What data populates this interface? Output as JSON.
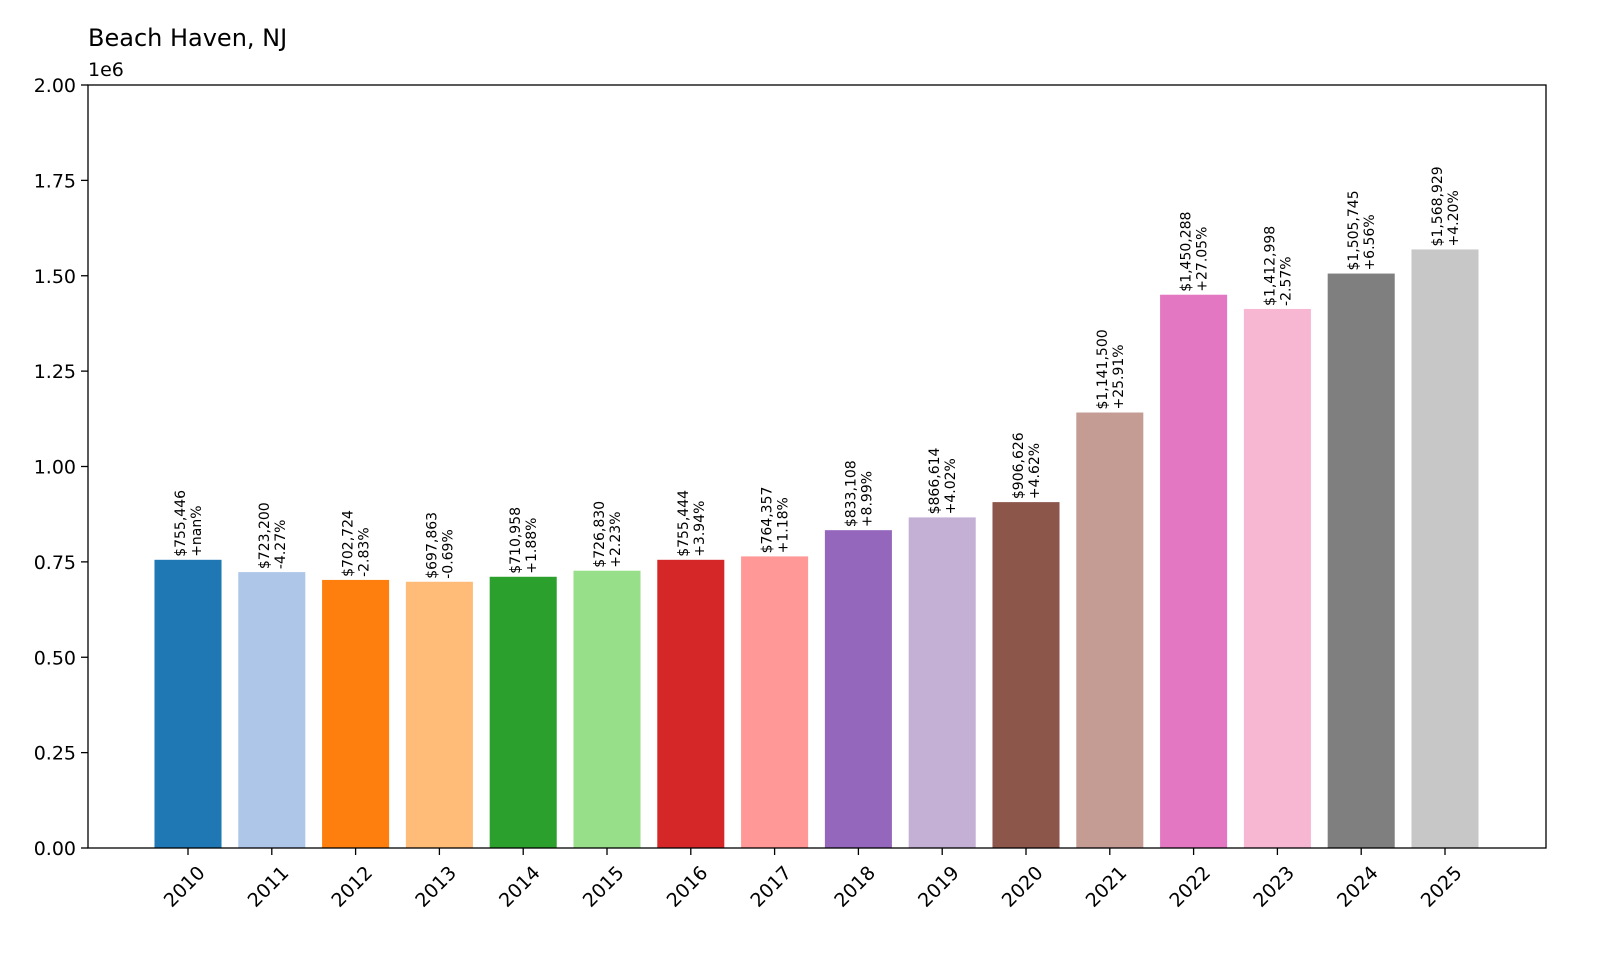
{
  "chart_data": {
    "type": "bar",
    "title": "Beach Haven, NJ",
    "xlabel": "",
    "ylabel": "",
    "y_offset_label": "1e6",
    "ylim": [
      0,
      2000000
    ],
    "yticks": [
      0,
      250000,
      500000,
      750000,
      1000000,
      1250000,
      1500000,
      1750000,
      2000000
    ],
    "ytick_labels": [
      "0.00",
      "0.25",
      "0.50",
      "0.75",
      "1.00",
      "1.25",
      "1.50",
      "1.75",
      "2.00"
    ],
    "grid": false,
    "legend": "none",
    "categories": [
      "2010",
      "2011",
      "2012",
      "2013",
      "2014",
      "2015",
      "2016",
      "2017",
      "2018",
      "2019",
      "2020",
      "2021",
      "2022",
      "2023",
      "2024",
      "2025"
    ],
    "values": [
      755446,
      723200,
      702724,
      697863,
      710958,
      726830,
      755444,
      764357,
      833108,
      866614,
      906626,
      1141500,
      1450288,
      1412998,
      1505745,
      1568929
    ],
    "value_labels": [
      "$755,446",
      "$723,200",
      "$702,724",
      "$697,863",
      "$710,958",
      "$726,830",
      "$755,444",
      "$764,357",
      "$833,108",
      "$866,614",
      "$906,626",
      "$1,141,500",
      "$1,450,288",
      "$1,412,998",
      "$1,505,745",
      "$1,568,929"
    ],
    "change_labels": [
      "+nan%",
      "-4.27%",
      "-2.83%",
      "-0.69%",
      "+1.88%",
      "+2.23%",
      "+3.94%",
      "+1.18%",
      "+8.99%",
      "+4.02%",
      "+4.62%",
      "+25.91%",
      "+27.05%",
      "-2.57%",
      "+6.56%",
      "+4.20%"
    ],
    "colors": [
      "#1f77b4",
      "#aec7e8",
      "#ff7f0e",
      "#ffbb78",
      "#2ca02c",
      "#98df8a",
      "#d62728",
      "#ff9896",
      "#9467bd",
      "#c5b0d5",
      "#8c564b",
      "#c49c94",
      "#e377c2",
      "#f7b6d2",
      "#7f7f7f",
      "#c7c7c7"
    ]
  }
}
